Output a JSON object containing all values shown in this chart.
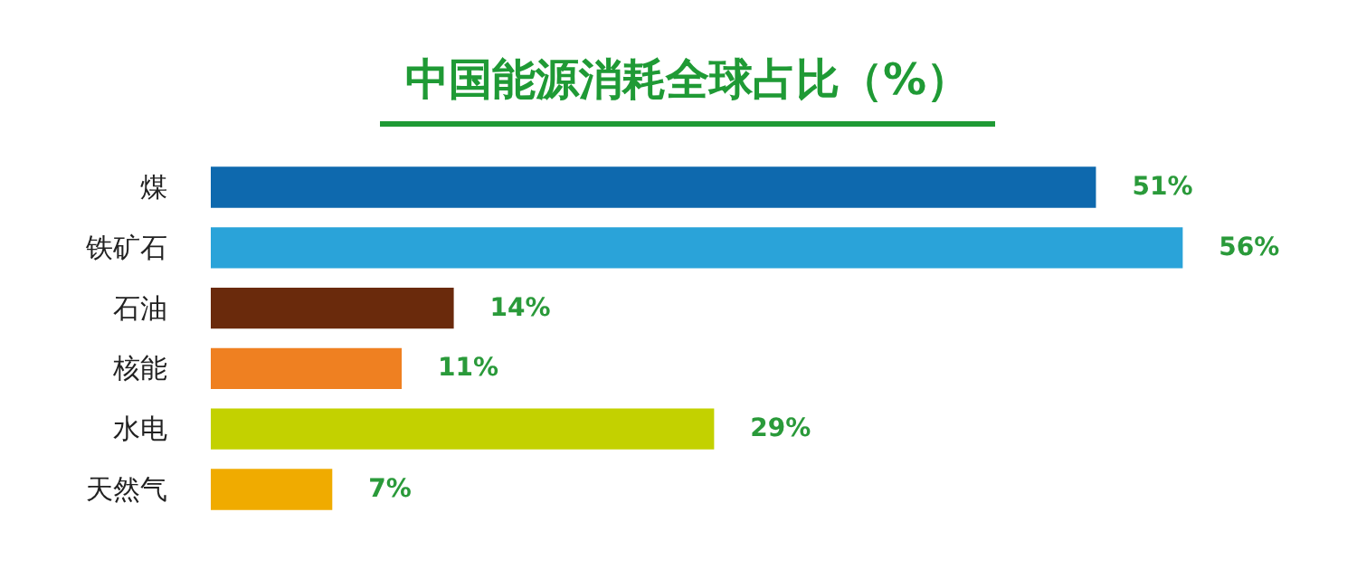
{
  "chart_data": {
    "type": "bar",
    "orientation": "horizontal",
    "title": "中国能源消耗全球占比（%）",
    "categories": [
      "煤",
      "铁矿石",
      "石油",
      "核能",
      "水电",
      "天然气"
    ],
    "values": [
      51,
      56,
      14,
      11,
      29,
      7
    ],
    "colors": [
      "#0e69ae",
      "#2aa3d9",
      "#6a2a0c",
      "#ef8021",
      "#c3d100",
      "#f0ab00"
    ],
    "value_labels": [
      "51%",
      "56%",
      "14%",
      "11%",
      "29%",
      "7%"
    ],
    "grid": false
  }
}
